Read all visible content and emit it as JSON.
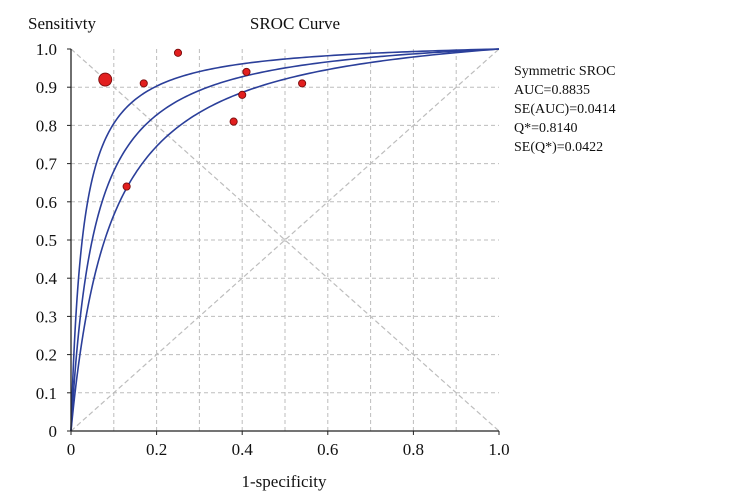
{
  "chart_data": {
    "type": "scatter",
    "title": "SROC Curve",
    "xlabel": "1-specificity",
    "ylabel": "Sensitivty",
    "xlim": [
      0,
      1
    ],
    "ylim": [
      0,
      1
    ],
    "x_ticks": [
      "0",
      "0.2",
      "0.4",
      "0.6",
      "0.8",
      "1.0"
    ],
    "y_ticks": [
      "0",
      "0.1",
      "0.2",
      "0.3",
      "0.4",
      "0.5",
      "0.6",
      "0.7",
      "0.8",
      "0.9",
      "1.0"
    ],
    "grid": true,
    "points": [
      {
        "x": 0.08,
        "y": 0.92,
        "size": "large"
      },
      {
        "x": 0.17,
        "y": 0.91,
        "size": "small"
      },
      {
        "x": 0.25,
        "y": 0.99,
        "size": "small"
      },
      {
        "x": 0.13,
        "y": 0.64,
        "size": "small"
      },
      {
        "x": 0.38,
        "y": 0.81,
        "size": "small"
      },
      {
        "x": 0.4,
        "y": 0.88,
        "size": "small"
      },
      {
        "x": 0.41,
        "y": 0.94,
        "size": "small"
      },
      {
        "x": 0.54,
        "y": 0.91,
        "size": "small"
      }
    ],
    "curves": [
      {
        "role": "SROC",
        "auc": 0.8835
      },
      {
        "role": "confidence-upper",
        "auc": 0.9249
      },
      {
        "role": "confidence-lower",
        "auc": 0.8421
      }
    ],
    "reference_lines": [
      "diagonal",
      "anti-diagonal"
    ],
    "annotations": [
      "Symmetric SROC",
      "AUC=0.8835",
      "SE(AUC)=0.0414",
      "Q*=0.8140",
      "SE(Q*)=0.0422"
    ],
    "colors": {
      "curve": "#2b3f9a",
      "point_fill": "#e21f1f",
      "point_stroke": "#7a0c0c",
      "grid": "#bdbdbd",
      "axis": "#222222"
    }
  }
}
